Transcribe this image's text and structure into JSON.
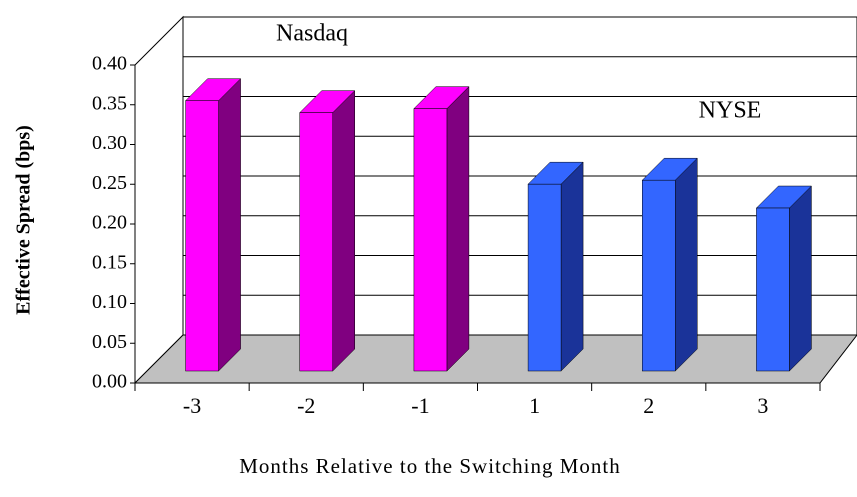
{
  "chart_data": {
    "type": "bar3d",
    "y_label": "Effective Spread (bps)",
    "x_label": "Months Relative to the Switching Month",
    "categories": [
      "-3",
      "-2",
      "-1",
      "1",
      "2",
      "3"
    ],
    "series": [
      {
        "name": "Nasdaq",
        "color": "#ff00ff",
        "side_color": "#800080",
        "values": [
          0.34,
          0.325,
          0.33,
          null,
          null,
          null
        ]
      },
      {
        "name": "NYSE",
        "color": "#3366ff",
        "side_color": "#1a3399",
        "values": [
          null,
          null,
          null,
          0.235,
          0.24,
          0.205
        ]
      }
    ],
    "ylim": [
      0,
      0.4
    ],
    "yticks": [
      {
        "value": 0,
        "label": "0.00"
      },
      {
        "value": 0.05,
        "label": "0.05"
      },
      {
        "value": 0.1,
        "label": "0.10"
      },
      {
        "value": 0.15,
        "label": "0.15"
      },
      {
        "value": 0.2,
        "label": "0.20"
      },
      {
        "value": 0.25,
        "label": "0.25"
      },
      {
        "value": 0.3,
        "label": "0.30"
      },
      {
        "value": 0.35,
        "label": "0.35"
      },
      {
        "value": 0.4,
        "label": "0.40"
      }
    ],
    "grid": true
  }
}
